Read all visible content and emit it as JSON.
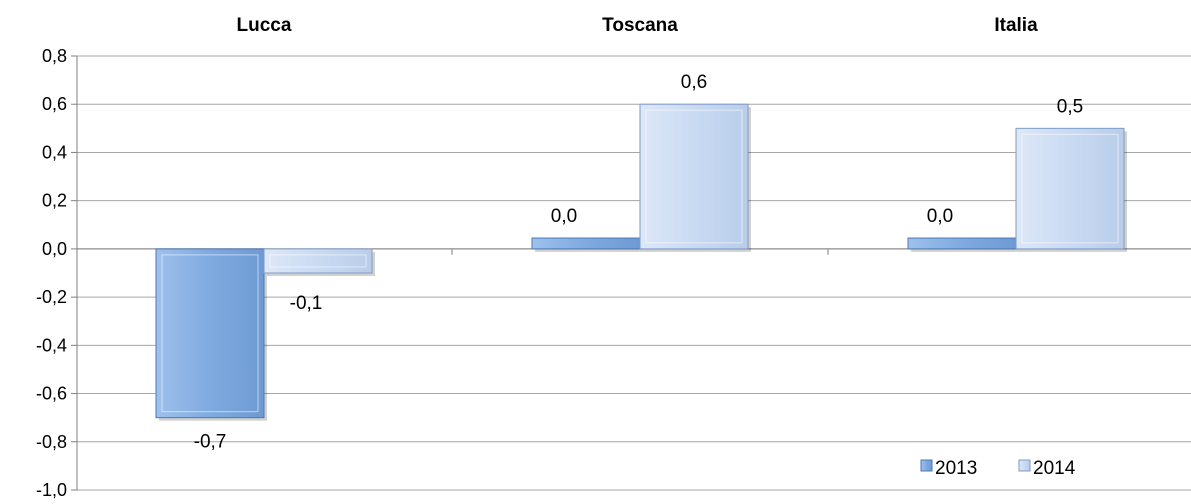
{
  "chart_data": {
    "type": "bar",
    "categories": [
      "Lucca",
      "Toscana",
      "Italia"
    ],
    "series": [
      {
        "name": "2013",
        "values": [
          -0.7,
          0.0,
          0.0
        ],
        "labels": [
          "-0,7",
          "0,0",
          "0,0"
        ]
      },
      {
        "name": "2014",
        "values": [
          -0.1,
          0.6,
          0.5
        ],
        "labels": [
          "-0,1",
          "0,6",
          "0,5"
        ]
      }
    ],
    "ylim": [
      -1.0,
      0.8
    ],
    "yticks": [
      0.8,
      0.6,
      0.4,
      0.2,
      0.0,
      -0.2,
      -0.4,
      -0.6,
      -0.8,
      -1.0
    ],
    "ytick_labels": [
      "0,8",
      "0,6",
      "0,4",
      "0,2",
      "0,0",
      "-0,2",
      "-0,4",
      "-0,6",
      "-0,8",
      "-1,0"
    ],
    "grid": true,
    "legend_position": "bottom-right",
    "colors": {
      "series_2013": "#7FAAE0",
      "series_2013_edge": "#4D78B0",
      "series_2014": "#C9DAF2",
      "series_2014_edge": "#7F9BC4",
      "grid": "#A6A6A6"
    }
  }
}
